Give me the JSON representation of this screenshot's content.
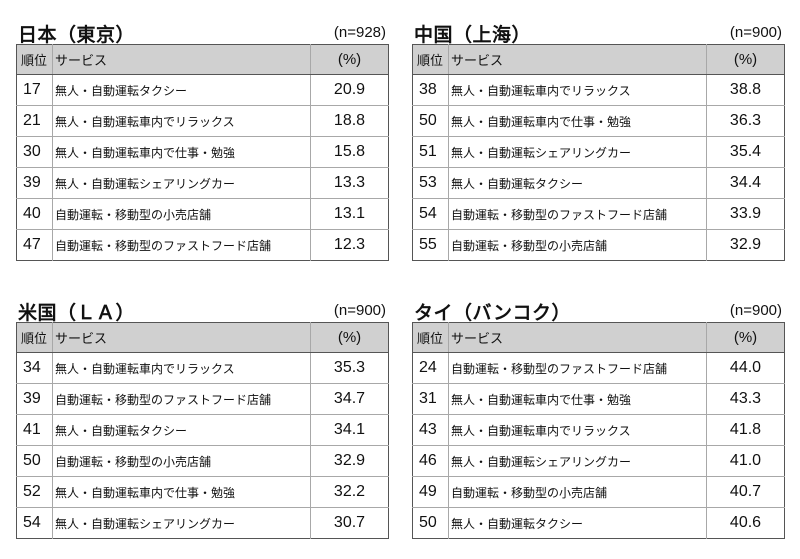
{
  "headers": {
    "rank": "順位",
    "service": "サービス",
    "pct": "(%)"
  },
  "panels": [
    {
      "title": "日本（東京）",
      "n": "(n=928)",
      "rows": [
        {
          "rank": "17",
          "service": "無人・自動運転タクシー",
          "pct": "20.9"
        },
        {
          "rank": "21",
          "service": "無人・自動運転車内でリラックス",
          "pct": "18.8"
        },
        {
          "rank": "30",
          "service": "無人・自動運転車内で仕事・勉強",
          "pct": "15.8"
        },
        {
          "rank": "39",
          "service": "無人・自動運転シェアリングカー",
          "pct": "13.3"
        },
        {
          "rank": "40",
          "service": "自動運転・移動型の小売店舗",
          "pct": "13.1"
        },
        {
          "rank": "47",
          "service": "自動運転・移動型のファストフード店舗",
          "pct": "12.3"
        }
      ]
    },
    {
      "title": "中国（上海）",
      "n": "(n=900)",
      "rows": [
        {
          "rank": "38",
          "service": "無人・自動運転車内でリラックス",
          "pct": "38.8"
        },
        {
          "rank": "50",
          "service": "無人・自動運転車内で仕事・勉強",
          "pct": "36.3"
        },
        {
          "rank": "51",
          "service": "無人・自動運転シェアリングカー",
          "pct": "35.4"
        },
        {
          "rank": "53",
          "service": "無人・自動運転タクシー",
          "pct": "34.4"
        },
        {
          "rank": "54",
          "service": "自動運転・移動型のファストフード店舗",
          "pct": "33.9"
        },
        {
          "rank": "55",
          "service": "自動運転・移動型の小売店舗",
          "pct": "32.9"
        }
      ]
    },
    {
      "title": "米国（ＬＡ）",
      "n": "(n=900)",
      "rows": [
        {
          "rank": "34",
          "service": "無人・自動運転車内でリラックス",
          "pct": "35.3"
        },
        {
          "rank": "39",
          "service": "自動運転・移動型のファストフード店舗",
          "pct": "34.7"
        },
        {
          "rank": "41",
          "service": "無人・自動運転タクシー",
          "pct": "34.1"
        },
        {
          "rank": "50",
          "service": "自動運転・移動型の小売店舗",
          "pct": "32.9"
        },
        {
          "rank": "52",
          "service": "無人・自動運転車内で仕事・勉強",
          "pct": "32.2"
        },
        {
          "rank": "54",
          "service": "無人・自動運転シェアリングカー",
          "pct": "30.7"
        }
      ]
    },
    {
      "title": "タイ（バンコク）",
      "n": "(n=900)",
      "rows": [
        {
          "rank": "24",
          "service": "自動運転・移動型のファストフード店舗",
          "pct": "44.0"
        },
        {
          "rank": "31",
          "service": "無人・自動運転車内で仕事・勉強",
          "pct": "43.3"
        },
        {
          "rank": "43",
          "service": "無人・自動運転車内でリラックス",
          "pct": "41.8"
        },
        {
          "rank": "46",
          "service": "無人・自動運転シェアリングカー",
          "pct": "41.0"
        },
        {
          "rank": "49",
          "service": "自動運転・移動型の小売店舗",
          "pct": "40.7"
        },
        {
          "rank": "50",
          "service": "無人・自動運転タクシー",
          "pct": "40.6"
        }
      ]
    }
  ]
}
